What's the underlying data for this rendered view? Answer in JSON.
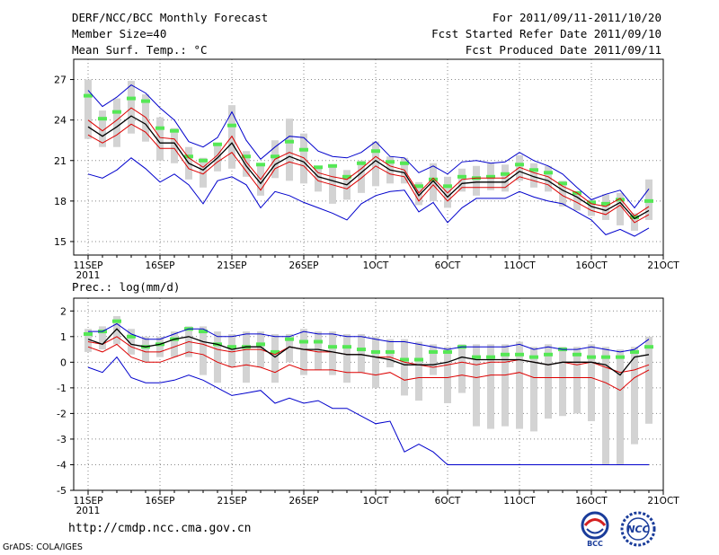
{
  "header": {
    "left": [
      "DERF/NCC/BCC Monthly Forecast",
      "Member Size=40",
      "Mean Surf. Temp.: °C"
    ],
    "right": [
      "For 2011/09/11-2011/10/20",
      "Fcst Started Refer Date 2011/09/10",
      "Fcst Produced Date 2011/09/11"
    ]
  },
  "footer": {
    "url": "http://cmdp.ncc.cma.gov.cn",
    "grads": "GrADS: COLA/IGES",
    "logo_bcc": "BCC",
    "logo_ncc": "NCC"
  },
  "colors": {
    "bar": "#d3d3d3",
    "ensmean": "#55e855",
    "blue": "#0000cc",
    "red": "#dd0000",
    "black": "#000000"
  },
  "chart_data": [
    {
      "type": "line",
      "title": "Mean Surf. Temp.: °C",
      "x_days": 40,
      "x_ticks": [
        {
          "day": 0,
          "label": "11SEP",
          "sublabel": "2011"
        },
        {
          "day": 5,
          "label": "16SEP"
        },
        {
          "day": 10,
          "label": "21SEP"
        },
        {
          "day": 15,
          "label": "26SEP"
        },
        {
          "day": 20,
          "label": "1OCT"
        },
        {
          "day": 25,
          "label": "6OCT"
        },
        {
          "day": 30,
          "label": "11OCT"
        },
        {
          "day": 35,
          "label": "16OCT"
        },
        {
          "day": 40,
          "label": "21OCT"
        }
      ],
      "ylim": [
        14,
        28.5
      ],
      "y_ticks": [
        15,
        18,
        21,
        24,
        27
      ],
      "blue_upper": [
        26.2,
        25.0,
        25.7,
        26.6,
        26.0,
        24.9,
        24.0,
        22.4,
        22.0,
        22.7,
        24.6,
        22.5,
        21.1,
        22.0,
        22.8,
        22.7,
        21.7,
        21.3,
        21.2,
        21.6,
        22.4,
        21.3,
        21.2,
        20.1,
        20.6,
        20.0,
        20.9,
        21.0,
        20.8,
        20.9,
        21.6,
        21.0,
        20.6,
        20.0,
        19.0,
        18.1,
        18.5,
        18.8,
        17.5,
        18.9
      ],
      "blue_lower": [
        20.0,
        19.7,
        20.3,
        21.2,
        20.4,
        19.4,
        20.0,
        19.2,
        17.8,
        19.5,
        19.8,
        19.2,
        17.5,
        18.7,
        18.4,
        17.9,
        17.5,
        17.1,
        16.6,
        17.8,
        18.4,
        18.7,
        18.8,
        17.2,
        17.9,
        16.4,
        17.5,
        18.2,
        18.2,
        18.2,
        18.7,
        18.3,
        18.0,
        17.8,
        17.2,
        16.6,
        15.5,
        15.9,
        15.4,
        16.0
      ],
      "red_upper": [
        24.0,
        23.2,
        24.0,
        24.9,
        24.2,
        22.7,
        22.6,
        21.2,
        20.5,
        21.4,
        22.8,
        20.9,
        19.6,
        21.1,
        21.6,
        21.2,
        20.1,
        19.8,
        19.6,
        20.4,
        21.3,
        20.6,
        20.3,
        18.6,
        19.7,
        18.6,
        19.6,
        19.7,
        19.7,
        19.7,
        20.5,
        20.1,
        19.8,
        19.1,
        18.6,
        17.8,
        17.6,
        18.2,
        16.9,
        17.6
      ],
      "red_lower": [
        22.9,
        22.3,
        22.9,
        23.7,
        23.1,
        21.9,
        21.9,
        20.4,
        20.0,
        20.9,
        21.6,
        20.2,
        18.8,
        20.4,
        20.9,
        20.6,
        19.5,
        19.2,
        18.9,
        19.7,
        20.6,
        20.0,
        19.8,
        18.0,
        19.2,
        18.0,
        19.0,
        19.0,
        19.0,
        19.0,
        19.8,
        19.5,
        19.2,
        18.4,
        17.9,
        17.3,
        17.0,
        17.7,
        16.4,
        17.0
      ],
      "black": [
        23.5,
        22.8,
        23.5,
        24.3,
        23.7,
        22.3,
        22.3,
        20.8,
        20.3,
        21.2,
        22.3,
        20.6,
        19.3,
        20.7,
        21.3,
        20.9,
        19.8,
        19.5,
        19.2,
        20.1,
        21.0,
        20.3,
        20.1,
        18.4,
        19.5,
        18.3,
        19.3,
        19.4,
        19.4,
        19.4,
        20.2,
        19.8,
        19.5,
        18.8,
        18.3,
        17.6,
        17.3,
        17.9,
        16.7,
        17.3
      ],
      "bar_low": [
        22.6,
        22.0,
        22.0,
        23.0,
        22.4,
        21.0,
        20.8,
        19.6,
        19.0,
        20.2,
        20.4,
        19.8,
        18.4,
        19.7,
        19.5,
        19.3,
        18.7,
        17.8,
        18.1,
        18.6,
        19.1,
        19.3,
        19.3,
        17.7,
        18.0,
        17.5,
        18.7,
        18.4,
        18.8,
        18.7,
        19.5,
        19.0,
        18.7,
        17.6,
        17.3,
        16.9,
        16.6,
        16.2,
        15.8,
        16.6
      ],
      "bar_high": [
        27.0,
        24.7,
        25.6,
        26.9,
        25.9,
        24.2,
        23.4,
        22.0,
        21.2,
        22.1,
        25.1,
        21.7,
        20.7,
        22.5,
        24.1,
        23.0,
        20.6,
        20.6,
        20.3,
        21.0,
        22.4,
        21.3,
        21.2,
        19.4,
        20.8,
        19.8,
        20.4,
        20.6,
        20.8,
        20.7,
        21.4,
        20.8,
        20.6,
        19.5,
        18.7,
        18.1,
        18.5,
        18.6,
        17.1,
        19.6
      ],
      "ens_mean": [
        25.8,
        24.1,
        24.6,
        25.6,
        25.4,
        23.4,
        23.2,
        21.3,
        21.0,
        22.2,
        23.6,
        21.3,
        20.7,
        21.3,
        22.4,
        21.8,
        20.5,
        20.6,
        19.8,
        20.8,
        21.7,
        20.9,
        20.8,
        19.1,
        19.6,
        19.1,
        19.8,
        19.7,
        19.8,
        20.0,
        20.7,
        20.3,
        20.1,
        19.3,
        18.6,
        17.9,
        17.8,
        18.1,
        16.8,
        18.0
      ]
    },
    {
      "type": "line",
      "title": "Prec.: log(mm/d)",
      "x_days": 40,
      "x_ticks": [
        {
          "day": 0,
          "label": "11SEP",
          "sublabel": "2011"
        },
        {
          "day": 5,
          "label": "16SEP"
        },
        {
          "day": 10,
          "label": "21SEP"
        },
        {
          "day": 15,
          "label": "26SEP"
        },
        {
          "day": 20,
          "label": "1OCT"
        },
        {
          "day": 25,
          "label": "6OCT"
        },
        {
          "day": 30,
          "label": "11OCT"
        },
        {
          "day": 35,
          "label": "16OCT"
        },
        {
          "day": 40,
          "label": "21OCT"
        }
      ],
      "ylim": [
        -5,
        2.5
      ],
      "y_ticks": [
        -5,
        -4,
        -3,
        -2,
        -1,
        0,
        1,
        2
      ],
      "blue_upper": [
        1.2,
        1.2,
        1.5,
        1.1,
        0.9,
        0.9,
        1.1,
        1.3,
        1.3,
        1.0,
        1.0,
        1.1,
        1.1,
        1.0,
        1.0,
        1.2,
        1.1,
        1.1,
        1.0,
        1.0,
        0.9,
        0.8,
        0.8,
        0.7,
        0.6,
        0.5,
        0.6,
        0.6,
        0.6,
        0.6,
        0.7,
        0.5,
        0.6,
        0.5,
        0.5,
        0.6,
        0.5,
        0.4,
        0.5,
        0.9
      ],
      "blue_lower": [
        -0.2,
        -0.4,
        0.2,
        -0.6,
        -0.8,
        -0.8,
        -0.7,
        -0.5,
        -0.7,
        -1.0,
        -1.3,
        -1.2,
        -1.1,
        -1.6,
        -1.4,
        -1.6,
        -1.5,
        -1.8,
        -1.8,
        -2.1,
        -2.4,
        -2.3,
        -3.5,
        -3.2,
        -3.5,
        -4.0,
        -4.0,
        -4.0,
        -4.0,
        -4.0,
        -4.0,
        -4.0,
        -4.0,
        -4.0,
        -4.0,
        -4.0,
        -4.0,
        -4.0,
        -4.0,
        -4.0
      ],
      "red_upper": [
        0.8,
        0.7,
        1.0,
        0.6,
        0.4,
        0.4,
        0.6,
        0.8,
        0.7,
        0.5,
        0.4,
        0.5,
        0.5,
        0.3,
        0.6,
        0.5,
        0.4,
        0.4,
        0.3,
        0.3,
        0.2,
        0.2,
        0.0,
        -0.1,
        -0.2,
        -0.1,
        0.0,
        -0.1,
        0.0,
        0.0,
        0.1,
        0.0,
        -0.1,
        0.0,
        -0.1,
        0.0,
        -0.2,
        -0.4,
        -0.3,
        -0.1
      ],
      "red_lower": [
        0.6,
        0.4,
        0.7,
        0.2,
        0.0,
        0.0,
        0.2,
        0.4,
        0.3,
        0.0,
        -0.2,
        -0.1,
        -0.2,
        -0.4,
        -0.1,
        -0.3,
        -0.3,
        -0.3,
        -0.4,
        -0.4,
        -0.5,
        -0.4,
        -0.7,
        -0.6,
        -0.6,
        -0.6,
        -0.5,
        -0.6,
        -0.5,
        -0.5,
        -0.4,
        -0.6,
        -0.6,
        -0.6,
        -0.6,
        -0.6,
        -0.8,
        -1.1,
        -0.6,
        -0.3
      ],
      "black": [
        0.9,
        0.7,
        1.3,
        0.7,
        0.6,
        0.7,
        0.9,
        1.0,
        0.8,
        0.7,
        0.5,
        0.6,
        0.6,
        0.2,
        0.6,
        0.5,
        0.5,
        0.4,
        0.3,
        0.3,
        0.2,
        0.1,
        -0.1,
        -0.1,
        -0.1,
        0.0,
        0.2,
        0.1,
        0.1,
        0.1,
        0.1,
        0.0,
        -0.1,
        0.0,
        0.0,
        0.0,
        -0.1,
        -0.5,
        0.2,
        0.3
      ],
      "bar_low": [
        0.4,
        0.5,
        0.7,
        0.3,
        0.0,
        0.2,
        0.2,
        0.2,
        -0.5,
        -0.8,
        -0.2,
        -0.8,
        -0.2,
        -0.8,
        0.0,
        -0.5,
        -0.3,
        -0.5,
        -0.8,
        -0.4,
        -1.0,
        -0.2,
        -1.3,
        -1.5,
        -0.5,
        -1.6,
        -1.2,
        -2.5,
        -2.6,
        -2.5,
        -2.6,
        -2.7,
        -2.2,
        -2.1,
        -2.0,
        -2.3,
        -4.0,
        -4.0,
        -3.2,
        -2.4
      ],
      "bar_high": [
        1.3,
        1.4,
        1.8,
        1.3,
        1.0,
        1.0,
        1.2,
        1.4,
        1.4,
        1.2,
        1.1,
        1.2,
        1.2,
        1.1,
        1.1,
        1.3,
        1.2,
        1.2,
        1.1,
        1.1,
        1.0,
        0.9,
        0.9,
        0.8,
        0.7,
        0.6,
        0.7,
        0.7,
        0.7,
        0.7,
        0.8,
        0.6,
        0.7,
        0.6,
        0.6,
        0.7,
        0.6,
        0.5,
        0.6,
        1.0
      ],
      "ens_mean": [
        1.1,
        1.2,
        1.6,
        1.0,
        0.6,
        0.7,
        0.9,
        1.3,
        1.2,
        0.7,
        0.6,
        0.6,
        0.7,
        0.4,
        0.9,
        0.8,
        0.8,
        0.6,
        0.6,
        0.5,
        0.4,
        0.4,
        0.1,
        0.1,
        0.4,
        0.4,
        0.6,
        0.2,
        0.2,
        0.3,
        0.3,
        0.2,
        0.3,
        0.5,
        0.3,
        0.2,
        0.2,
        0.2,
        0.4,
        0.6
      ]
    }
  ]
}
